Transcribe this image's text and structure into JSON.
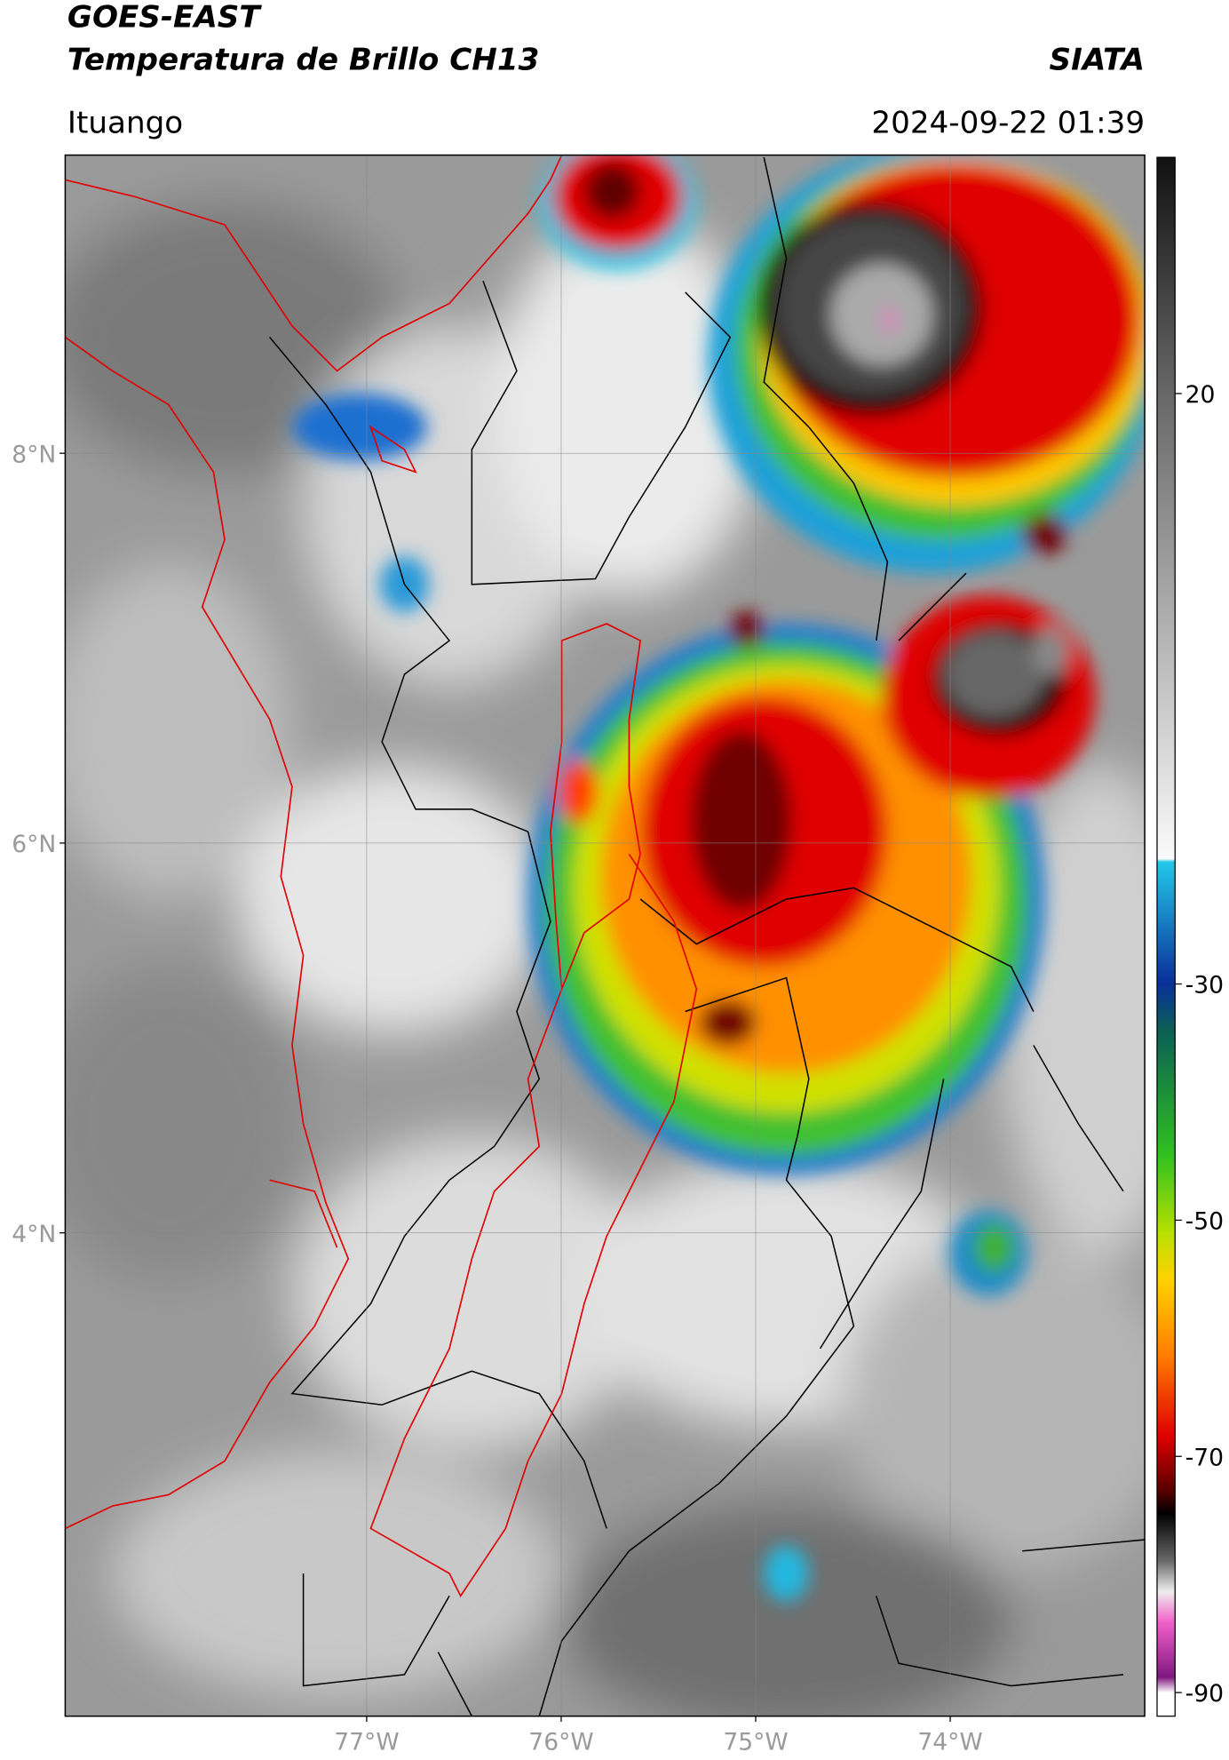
{
  "header": {
    "title": "GOES-EAST",
    "subtitle": "Temperatura de Brillo CH13",
    "brand": "SIATA",
    "location": "Ituango",
    "datetime": "2024-09-22 01:39"
  },
  "map": {
    "xlim": [
      -78.55,
      -73.0
    ],
    "ylim": [
      1.52,
      9.53
    ],
    "xticks": [
      {
        "value": -77,
        "label": "77°W"
      },
      {
        "value": -76,
        "label": "76°W"
      },
      {
        "value": -75,
        "label": "75°W"
      },
      {
        "value": -74,
        "label": "74°W"
      }
    ],
    "yticks": [
      {
        "value": 8,
        "label": "8°N"
      },
      {
        "value": 6,
        "label": "6°N"
      },
      {
        "value": 4,
        "label": "4°N"
      }
    ],
    "grid": true
  },
  "colorbar": {
    "lim": [
      -92,
      40
    ],
    "ticks": [
      20,
      -30,
      -50,
      -70,
      -90
    ]
  }
}
